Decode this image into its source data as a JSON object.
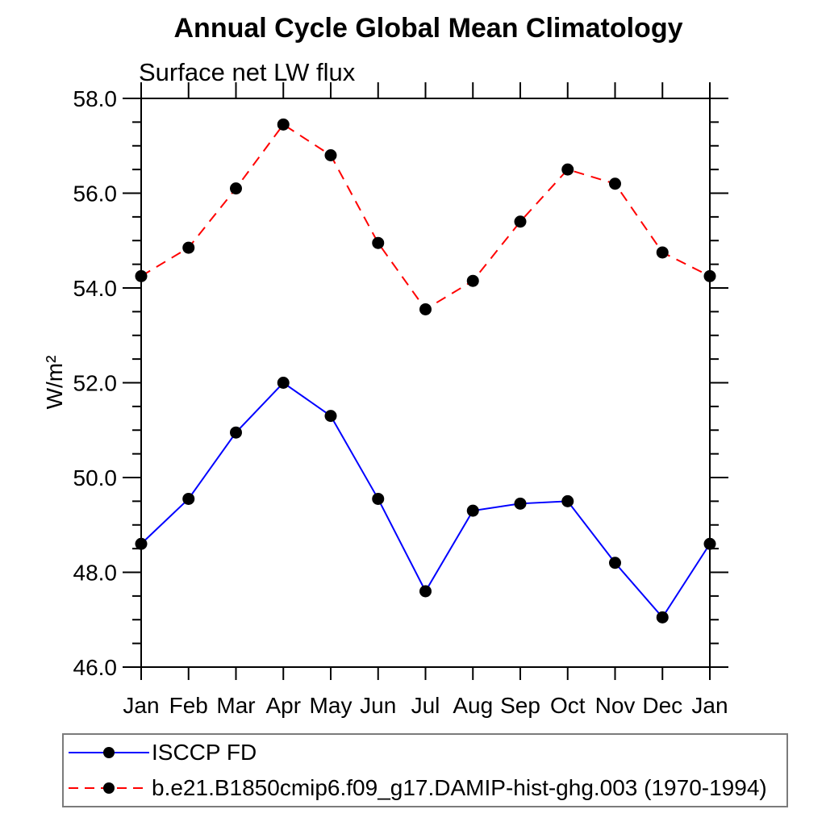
{
  "page": {
    "background": "#ffffff"
  },
  "chart_data": {
    "type": "line",
    "title": "Annual Cycle Global Mean Climatology",
    "subtitle": "Surface net LW flux",
    "ylabel": "W/m²",
    "xlabel": "",
    "categories": [
      "Jan",
      "Feb",
      "Mar",
      "Apr",
      "May",
      "Jun",
      "Jul",
      "Aug",
      "Sep",
      "Oct",
      "Nov",
      "Dec",
      "Jan"
    ],
    "ylim": [
      46.0,
      58.0
    ],
    "ytick_labels": [
      "46.0",
      "48.0",
      "50.0",
      "52.0",
      "54.0",
      "56.0",
      "58.0"
    ],
    "ytick_major_step": 2.0,
    "ytick_minor_step": 0.5,
    "grid": false,
    "legend_position": "bottom-left-box",
    "series": [
      {
        "name": "ISCCP FD",
        "color": "#0000ff",
        "line_style": "solid",
        "marker": "circle",
        "marker_color": "#000000",
        "values": [
          48.6,
          49.55,
          50.95,
          52.0,
          51.3,
          49.55,
          47.6,
          49.3,
          49.45,
          49.5,
          48.2,
          47.05,
          48.6
        ]
      },
      {
        "name": "b.e21.B1850cmip6.f09_g17.DAMIP-hist-ghg.003 (1970-1994)",
        "color": "#ff0000",
        "line_style": "dashed",
        "marker": "circle",
        "marker_color": "#000000",
        "values": [
          54.25,
          54.85,
          56.1,
          57.45,
          56.8,
          54.95,
          53.55,
          54.15,
          55.4,
          56.5,
          56.2,
          54.75,
          54.25
        ]
      }
    ],
    "axis_color": "#000000"
  }
}
